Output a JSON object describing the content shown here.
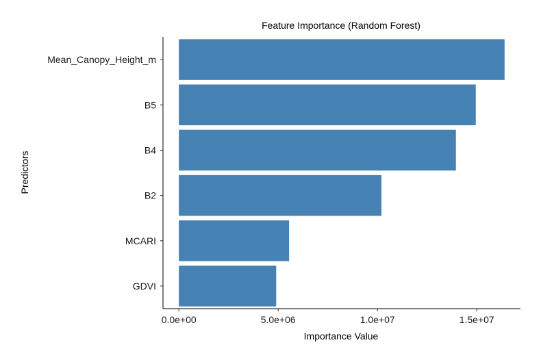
{
  "chart_data": {
    "type": "bar",
    "orientation": "horizontal",
    "title": "Feature Importance (Random Forest)",
    "xlabel": "Importance Value",
    "ylabel": "Predictors",
    "categories": [
      "Mean_Canopy_Height_m",
      "B5",
      "B4",
      "B2",
      "MCARI",
      "GDVI"
    ],
    "values": [
      16400000,
      14950000,
      13950000,
      10200000,
      5550000,
      4900000
    ],
    "xlim": [
      -800000,
      17200000
    ],
    "xticks": [
      0,
      5000000,
      10000000,
      15000000
    ],
    "xtick_labels": [
      "0.0e+00",
      "5.0e+06",
      "1.0e+07",
      "1.5e+07"
    ],
    "bar_color": "#4682B4",
    "grid": false,
    "legend": "none"
  }
}
